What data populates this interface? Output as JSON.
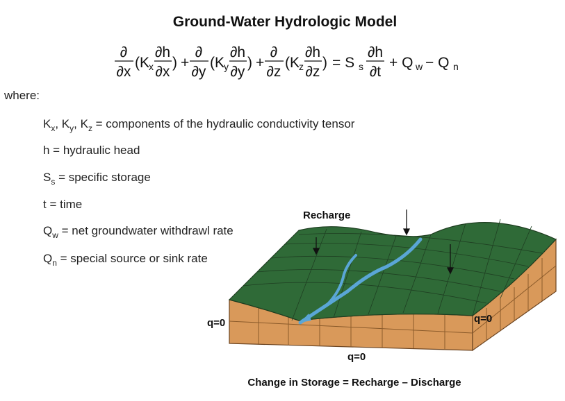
{
  "title": "Ground-Water Hydrologic Model",
  "equation": [
    "∂",
    "∂x",
    "(K",
    "x",
    "∂h",
    "∂x",
    ")",
    "+",
    "∂",
    "∂y",
    "(K",
    "y",
    "∂h",
    "∂y",
    ")",
    "+",
    "∂",
    "∂z",
    "(K",
    "z",
    "∂h",
    "∂z",
    ")",
    "= S",
    "s",
    "∂h",
    "∂t",
    "+ Q",
    "w",
    "− Q",
    "n"
  ],
  "where": "where:",
  "definitions": [
    [
      "K",
      "x",
      ", K",
      "y",
      ", K",
      "z",
      " = components of the hydraulic conductivity tensor"
    ],
    [
      "h = hydraulic head"
    ],
    [
      "S",
      "s",
      " = specific storage"
    ],
    [
      "t = time"
    ],
    [
      "Q",
      "w",
      " = net groundwater withdrawl rate"
    ],
    [
      "Q",
      "n",
      " = special source or sink rate"
    ]
  ],
  "diagram": {
    "recharge": "Recharge",
    "boundary_left": "q=0",
    "boundary_right": "q=0",
    "boundary_bottom": "q=0",
    "caption": "Change in Storage = Recharge – Discharge"
  }
}
